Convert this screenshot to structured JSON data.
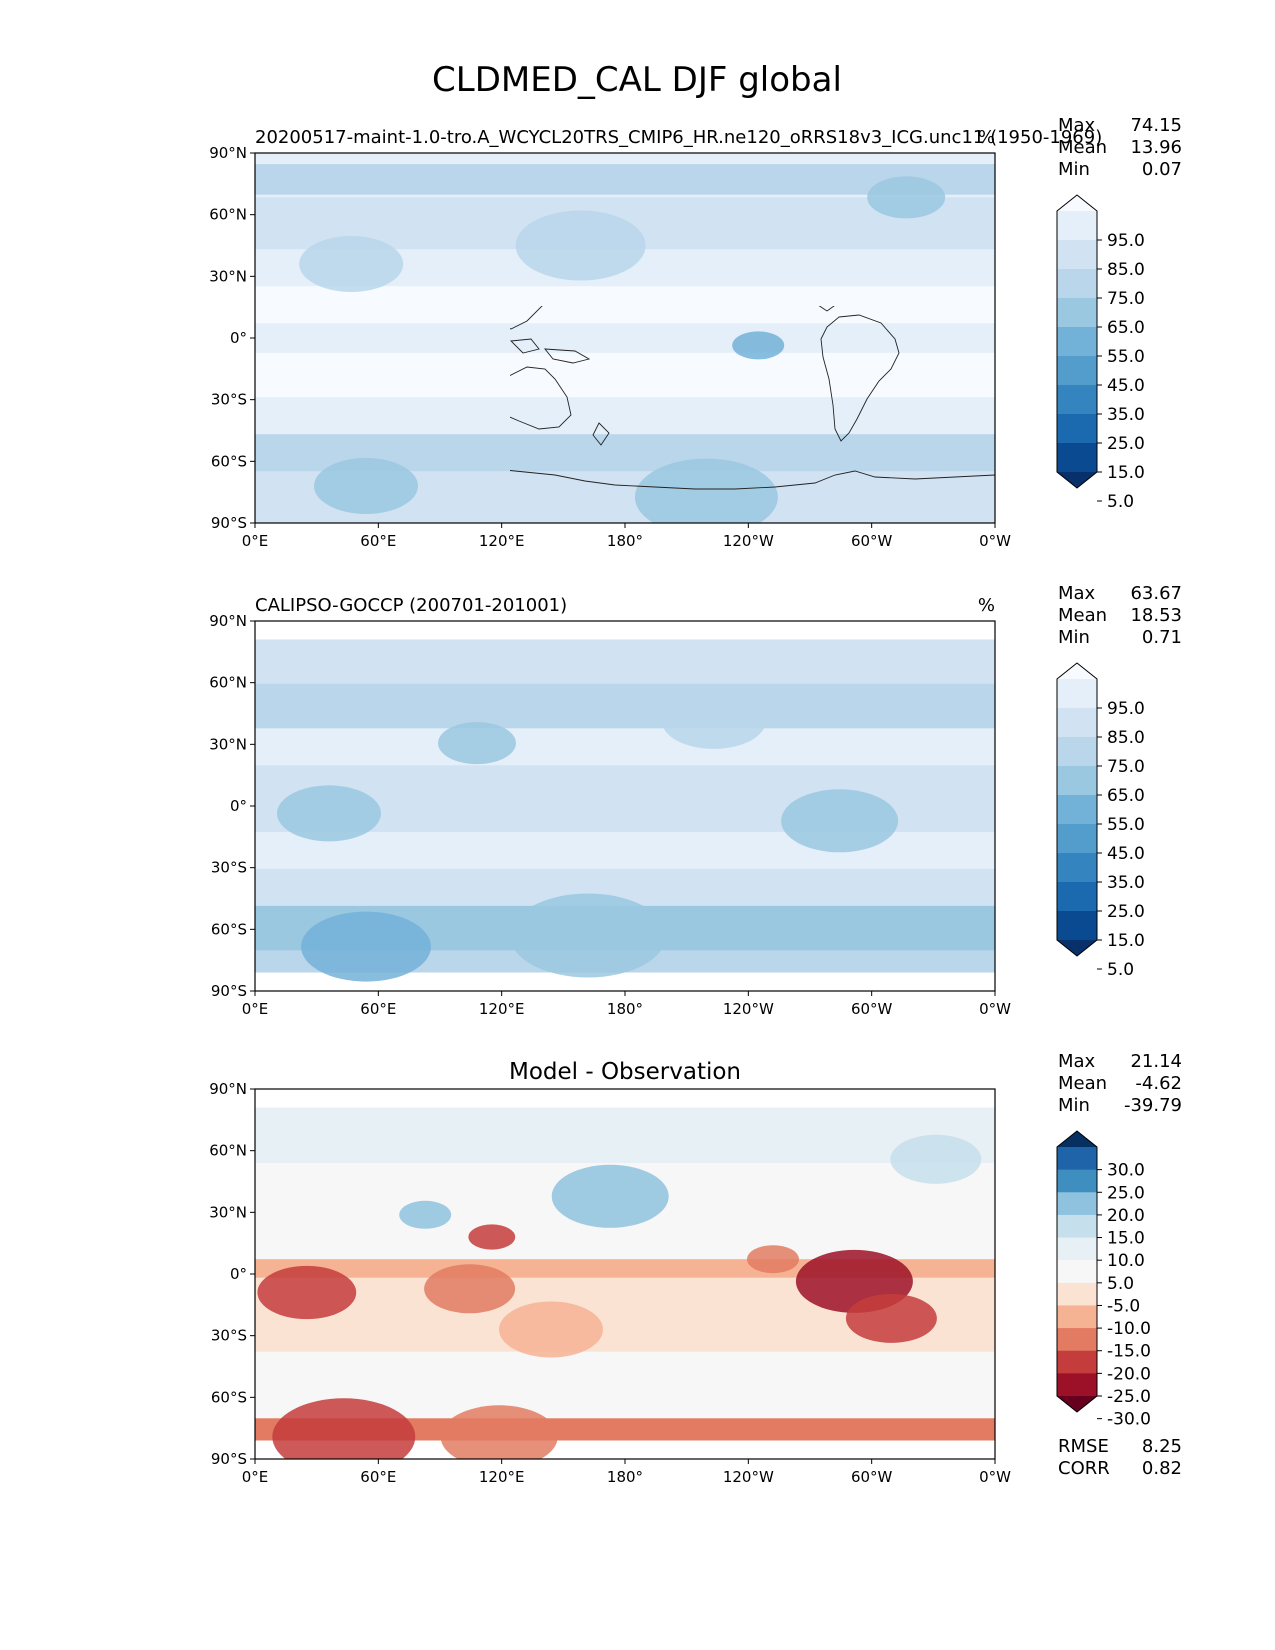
{
  "figure": {
    "title": "CLDMED_CAL DJF global"
  },
  "axes": {
    "lat_ticks": [
      "90°N",
      "60°N",
      "30°N",
      "0°",
      "30°S",
      "60°S",
      "90°S"
    ],
    "lon_ticks": [
      "0°E",
      "60°E",
      "120°E",
      "180°",
      "120°W",
      "60°W",
      "0°W"
    ]
  },
  "panels": [
    {
      "left_title": "20200517-maint-1.0-tro.A_WCYCL20TRS_CMIP6_HR.ne120_oRRS18v3_ICG.unc11 (1950-1969)",
      "right_title": "%",
      "center_title": "",
      "stats": [
        {
          "label": "Max",
          "value": "74.15"
        },
        {
          "label": "Mean",
          "value": "13.96"
        },
        {
          "label": "Min",
          "value": "0.07"
        }
      ],
      "colorbar": {
        "colors": [
          "#f7fbff",
          "#e4eff9",
          "#d1e2f2",
          "#bad6eb",
          "#9ac8e0",
          "#73b2d8",
          "#529dcc",
          "#3484bf",
          "#1b69af",
          "#0a4a90",
          "#08306b"
        ],
        "labels": [
          "95.0",
          "85.0",
          "75.0",
          "65.0",
          "55.0",
          "45.0",
          "35.0",
          "25.0",
          "15.0",
          "5.0"
        ]
      },
      "bottom_stats": []
    },
    {
      "left_title": "CALIPSO-GOCCP (200701-201001)",
      "right_title": "%",
      "center_title": "",
      "stats": [
        {
          "label": "Max",
          "value": "63.67"
        },
        {
          "label": "Mean",
          "value": "18.53"
        },
        {
          "label": "Min",
          "value": "0.71"
        }
      ],
      "colorbar": {
        "colors": [
          "#f7fbff",
          "#e4eff9",
          "#d1e2f2",
          "#bad6eb",
          "#9ac8e0",
          "#73b2d8",
          "#529dcc",
          "#3484bf",
          "#1b69af",
          "#0a4a90",
          "#08306b"
        ],
        "labels": [
          "95.0",
          "85.0",
          "75.0",
          "65.0",
          "55.0",
          "45.0",
          "35.0",
          "25.0",
          "15.0",
          "5.0"
        ]
      },
      "bottom_stats": []
    },
    {
      "left_title": "",
      "right_title": "",
      "center_title": "Model - Observation",
      "stats": [
        {
          "label": "Max",
          "value": "21.14"
        },
        {
          "label": "Mean",
          "value": "-4.62"
        },
        {
          "label": "Min",
          "value": "-39.79"
        }
      ],
      "colorbar": {
        "colors": [
          "#053061",
          "#1f63a8",
          "#3f8ec0",
          "#8ec2de",
          "#c5dfec",
          "#e7f0f5",
          "#f7f7f7",
          "#fbe3d4",
          "#f6b394",
          "#e27b62",
          "#c43c3c",
          "#9c1127",
          "#67001f"
        ],
        "labels": [
          "30.0",
          "25.0",
          "20.0",
          "15.0",
          "10.0",
          "5.0",
          "-5.0",
          "-10.0",
          "-15.0",
          "-20.0",
          "-25.0",
          "-30.0"
        ]
      },
      "bottom_stats": [
        {
          "label": "RMSE",
          "value": "8.25"
        },
        {
          "label": "CORR",
          "value": "0.82"
        }
      ]
    }
  ]
}
